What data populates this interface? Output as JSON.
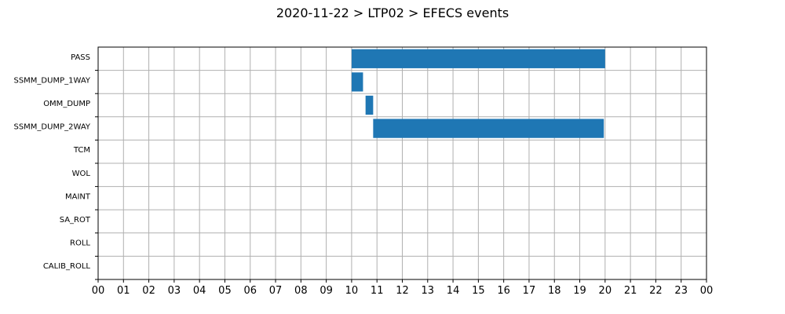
{
  "chart_data": {
    "type": "bar",
    "orientation": "horizontal-timeline",
    "title": "2020-11-22 > LTP02 > EFECS events",
    "xlabel": "",
    "ylabel": "",
    "xlim": [
      0,
      24
    ],
    "x_tick_labels": [
      "00",
      "01",
      "02",
      "03",
      "04",
      "05",
      "06",
      "07",
      "08",
      "09",
      "10",
      "11",
      "12",
      "13",
      "14",
      "15",
      "16",
      "17",
      "18",
      "19",
      "20",
      "21",
      "22",
      "23",
      "00"
    ],
    "categories": [
      "PASS",
      "SSMM_DUMP_1WAY",
      "OMM_DUMP",
      "SSMM_DUMP_2WAY",
      "TCM",
      "WOL",
      "MAINT",
      "SA_ROT",
      "ROLL",
      "CALIB_ROLL"
    ],
    "series": [
      {
        "values": [
          [
            [
              10.0,
              20.0
            ]
          ],
          [
            [
              10.0,
              10.45
            ]
          ],
          [
            [
              10.55,
              10.85
            ]
          ],
          [
            [
              10.85,
              19.95
            ]
          ],
          [],
          [],
          [],
          [],
          [],
          []
        ]
      }
    ],
    "grid": true,
    "bar_color": "#1f77b4",
    "grid_color": "#b0b0b0"
  }
}
